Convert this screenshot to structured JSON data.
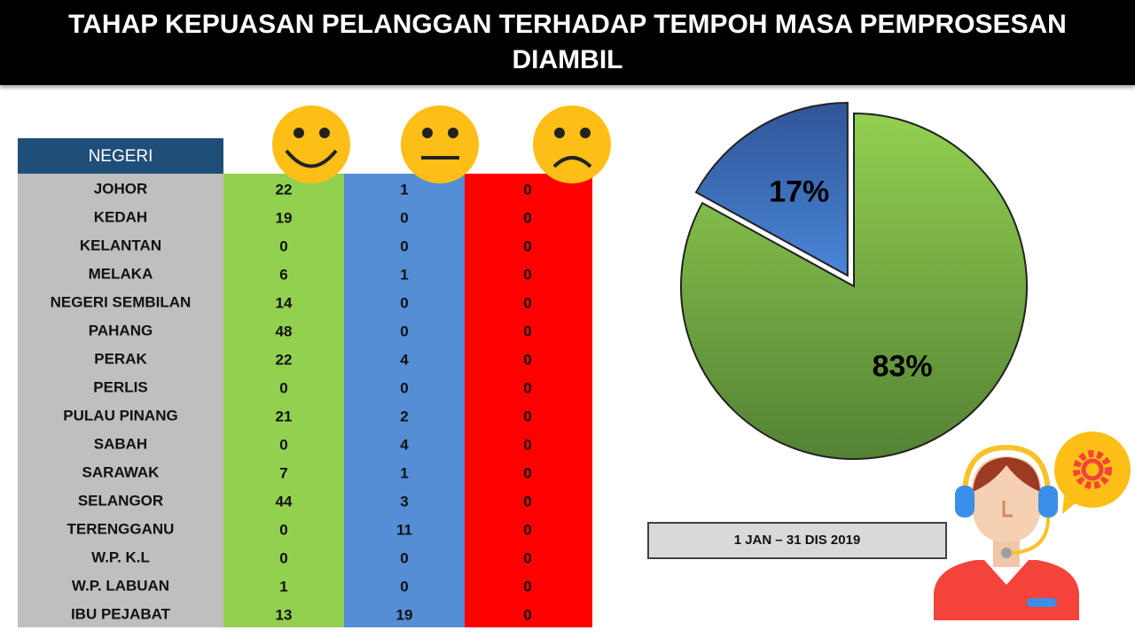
{
  "title": "TAHAP KEPUASAN PELANGGAN TERHADAP TEMPOH MASA PEMPROSESAN DIAMBIL",
  "table": {
    "header": "NEGERI",
    "rows": [
      [
        "JOHOR",
        22,
        1,
        0
      ],
      [
        "KEDAH",
        19,
        0,
        0
      ],
      [
        "KELANTAN",
        0,
        0,
        0
      ],
      [
        "MELAKA",
        6,
        1,
        0
      ],
      [
        "NEGERI SEMBILAN",
        14,
        0,
        0
      ],
      [
        "PAHANG",
        48,
        0,
        0
      ],
      [
        "PERAK",
        22,
        4,
        0
      ],
      [
        "PERLIS",
        0,
        0,
        0
      ],
      [
        "PULAU PINANG",
        21,
        2,
        0
      ],
      [
        "SABAH",
        0,
        4,
        0
      ],
      [
        "SARAWAK",
        7,
        1,
        0
      ],
      [
        "SELANGOR",
        44,
        3,
        0
      ],
      [
        "TERENGGANU",
        0,
        11,
        0
      ],
      [
        "W.P. K.L",
        0,
        0,
        0
      ],
      [
        "W.P. LABUAN",
        1,
        0,
        0
      ],
      [
        "IBU PEJABAT",
        13,
        19,
        0
      ]
    ]
  },
  "chart_data": {
    "type": "pie",
    "values": [
      83,
      17
    ],
    "value_labels": [
      "83%",
      "17%"
    ],
    "colors": [
      "#7cbf3f",
      "#3f72c0"
    ]
  },
  "date_label": "1 JAN – 31 DIS 2019"
}
